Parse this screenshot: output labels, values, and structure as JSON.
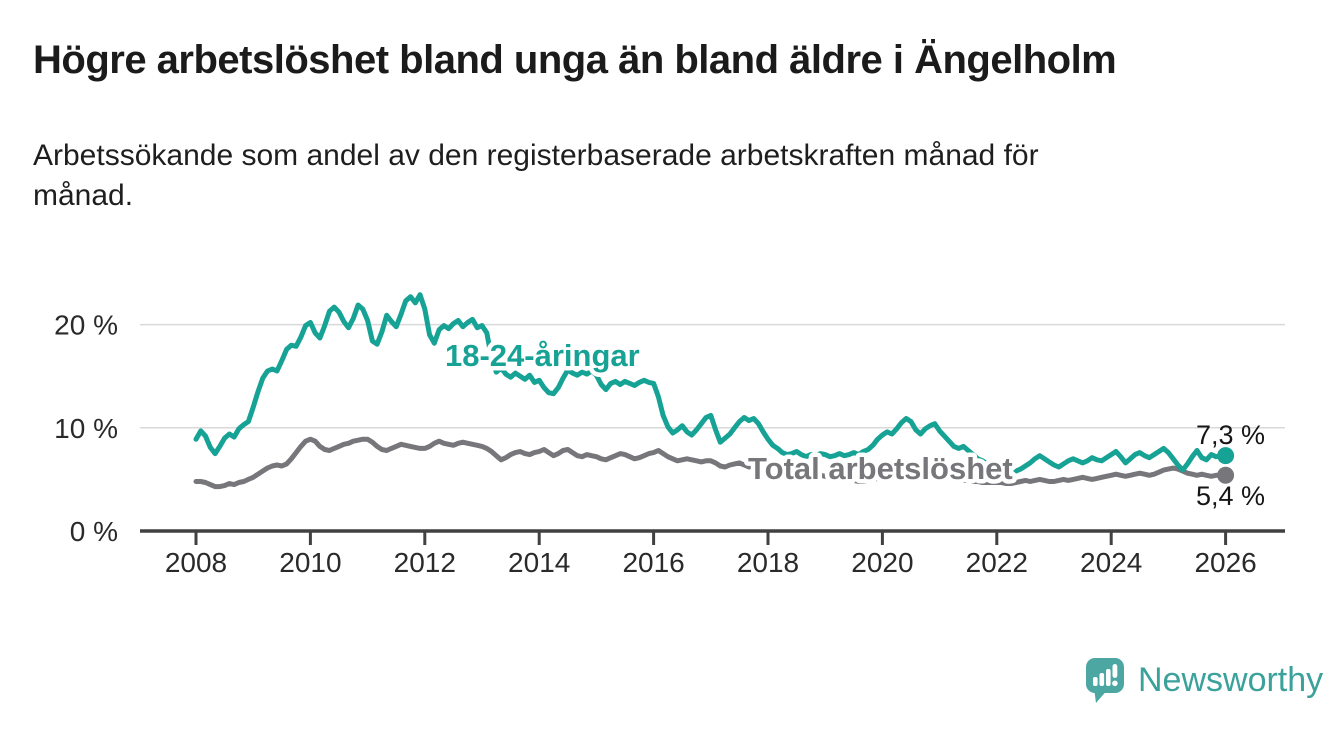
{
  "chart_data": {
    "type": "line",
    "title": "Högre arbetslöshet bland unga än bland äldre i Ängelholm",
    "subtitle": "Arbetssökande som andel av den registerbaserade arbetskraften månad för månad.",
    "subtitle_lines": [
      "Arbetssökande som andel av den registerbaserade arbetskraften månad för",
      "månad."
    ],
    "xlabel": "",
    "ylabel": "",
    "x_start_year": 2008,
    "x_interval_months": 1,
    "x_tick_years": [
      2008,
      2010,
      2012,
      2014,
      2016,
      2018,
      2020,
      2022,
      2024,
      2026
    ],
    "y_ticks": [
      {
        "value": 0,
        "label": "0 %"
      },
      {
        "value": 10,
        "label": "10 %"
      },
      {
        "value": 20,
        "label": "20 %"
      }
    ],
    "ylim": [
      0,
      24.5
    ],
    "grid": "horizontal",
    "legend": "inline-labels",
    "series": [
      {
        "name": "18-24-åringar",
        "color": "#16a294",
        "end_value_label": "7,3 %",
        "values": [
          8.9,
          9.7,
          9.2,
          8.1,
          7.5,
          8.2,
          9.0,
          9.4,
          9.1,
          9.9,
          10.3,
          10.6,
          12.0,
          13.5,
          14.8,
          15.5,
          15.7,
          15.5,
          16.5,
          17.6,
          18.0,
          17.9,
          18.8,
          19.9,
          20.2,
          19.2,
          18.7,
          19.9,
          21.3,
          21.7,
          21.2,
          20.3,
          19.7,
          20.6,
          21.9,
          21.5,
          20.4,
          18.4,
          18.1,
          19.3,
          20.9,
          20.3,
          19.8,
          21.0,
          22.3,
          22.7,
          22.1,
          22.9,
          21.5,
          19.0,
          18.2,
          19.5,
          19.9,
          19.6,
          20.1,
          20.4,
          19.8,
          20.2,
          20.5,
          19.7,
          19.9,
          19.2,
          16.8,
          15.4,
          15.8,
          15.2,
          14.9,
          15.3,
          15.0,
          14.7,
          15.1,
          14.4,
          14.6,
          13.9,
          13.4,
          13.3,
          13.9,
          14.8,
          15.6,
          15.3,
          15.1,
          15.4,
          15.2,
          15.5,
          15.1,
          14.2,
          13.7,
          14.3,
          14.5,
          14.2,
          14.5,
          14.3,
          14.1,
          14.4,
          14.6,
          14.4,
          14.3,
          13.0,
          11.2,
          10.1,
          9.5,
          9.8,
          10.2,
          9.6,
          9.3,
          9.8,
          10.4,
          11.0,
          11.2,
          9.8,
          8.6,
          9.0,
          9.4,
          10.0,
          10.6,
          11.0,
          10.7,
          10.9,
          10.4,
          9.6,
          8.9,
          8.3,
          8.0,
          7.6,
          7.4,
          7.5,
          7.7,
          7.4,
          7.2,
          7.4,
          7.3,
          7.5,
          7.4,
          7.2,
          7.3,
          7.5,
          7.3,
          7.4,
          7.6,
          7.4,
          7.7,
          7.9,
          8.3,
          8.9,
          9.3,
          9.6,
          9.4,
          9.9,
          10.5,
          10.9,
          10.6,
          9.8,
          9.4,
          9.9,
          10.2,
          10.4,
          9.7,
          9.2,
          8.7,
          8.2,
          8.0,
          8.2,
          7.8,
          7.4,
          7.0,
          6.8,
          6.5,
          6.3,
          6.1,
          5.9,
          5.8,
          5.7,
          5.8,
          6.0,
          6.3,
          6.6,
          7.0,
          7.3,
          7.0,
          6.7,
          6.4,
          6.2,
          6.5,
          6.8,
          7.0,
          6.8,
          6.6,
          6.8,
          7.1,
          6.9,
          6.8,
          7.1,
          7.4,
          7.7,
          7.2,
          6.6,
          7.0,
          7.4,
          7.6,
          7.3,
          7.1,
          7.4,
          7.7,
          8.0,
          7.6,
          7.0,
          6.4,
          5.9,
          6.5,
          7.2,
          7.8,
          7.1,
          6.9,
          7.4,
          7.2,
          7.3,
          7.3
        ]
      },
      {
        "name": "Total arbetslöshet",
        "color": "#77767a",
        "end_value_label": "5,4 %",
        "values": [
          4.8,
          4.8,
          4.7,
          4.5,
          4.3,
          4.3,
          4.4,
          4.6,
          4.5,
          4.7,
          4.8,
          5.0,
          5.2,
          5.5,
          5.8,
          6.1,
          6.3,
          6.4,
          6.3,
          6.5,
          7.0,
          7.6,
          8.2,
          8.7,
          8.9,
          8.7,
          8.2,
          7.9,
          7.8,
          8.0,
          8.2,
          8.4,
          8.5,
          8.7,
          8.8,
          8.9,
          8.9,
          8.6,
          8.2,
          7.9,
          7.8,
          8.0,
          8.2,
          8.4,
          8.3,
          8.2,
          8.1,
          8.0,
          8.0,
          8.2,
          8.5,
          8.7,
          8.5,
          8.4,
          8.3,
          8.5,
          8.6,
          8.5,
          8.4,
          8.3,
          8.2,
          8.0,
          7.7,
          7.3,
          6.9,
          7.1,
          7.4,
          7.6,
          7.7,
          7.5,
          7.4,
          7.6,
          7.7,
          7.9,
          7.6,
          7.3,
          7.5,
          7.8,
          7.9,
          7.6,
          7.3,
          7.2,
          7.4,
          7.3,
          7.2,
          7.0,
          6.9,
          7.1,
          7.3,
          7.5,
          7.4,
          7.2,
          7.0,
          7.1,
          7.3,
          7.5,
          7.6,
          7.8,
          7.5,
          7.2,
          7.0,
          6.8,
          6.9,
          7.0,
          6.9,
          6.8,
          6.7,
          6.8,
          6.8,
          6.6,
          6.3,
          6.2,
          6.4,
          6.5,
          6.6,
          6.4,
          6.2,
          6.3,
          6.4,
          6.5,
          6.4,
          6.2,
          6.1,
          6.0,
          5.9,
          5.8,
          5.9,
          5.8,
          5.7,
          5.6,
          5.5,
          5.4,
          5.3,
          5.2,
          5.1,
          5.0,
          5.0,
          4.9,
          4.9,
          4.8,
          4.8,
          4.9,
          5.0,
          5.1,
          5.2,
          5.3,
          5.5,
          5.8,
          6.0,
          6.1,
          6.0,
          5.9,
          5.8,
          5.7,
          5.6,
          5.5,
          5.4,
          5.3,
          5.2,
          5.1,
          5.0,
          4.9,
          4.9,
          4.8,
          4.8,
          4.7,
          4.7,
          4.7,
          4.7,
          4.7,
          4.6,
          4.6,
          4.7,
          4.8,
          4.9,
          4.8,
          4.9,
          5.0,
          4.9,
          4.8,
          4.8,
          4.9,
          5.0,
          4.9,
          5.0,
          5.1,
          5.2,
          5.1,
          5.0,
          5.1,
          5.2,
          5.3,
          5.4,
          5.5,
          5.4,
          5.3,
          5.4,
          5.5,
          5.6,
          5.5,
          5.4,
          5.5,
          5.7,
          5.9,
          6.0,
          6.1,
          6.0,
          5.8,
          5.6,
          5.5,
          5.4,
          5.5,
          5.4,
          5.3,
          5.4,
          5.4,
          5.4
        ]
      }
    ]
  },
  "footer": {
    "brand": "Newsworthy",
    "brand_color": "#3aa19b",
    "logo_icon": "newsworthy-speech-bubble-bar-chart-icon"
  }
}
